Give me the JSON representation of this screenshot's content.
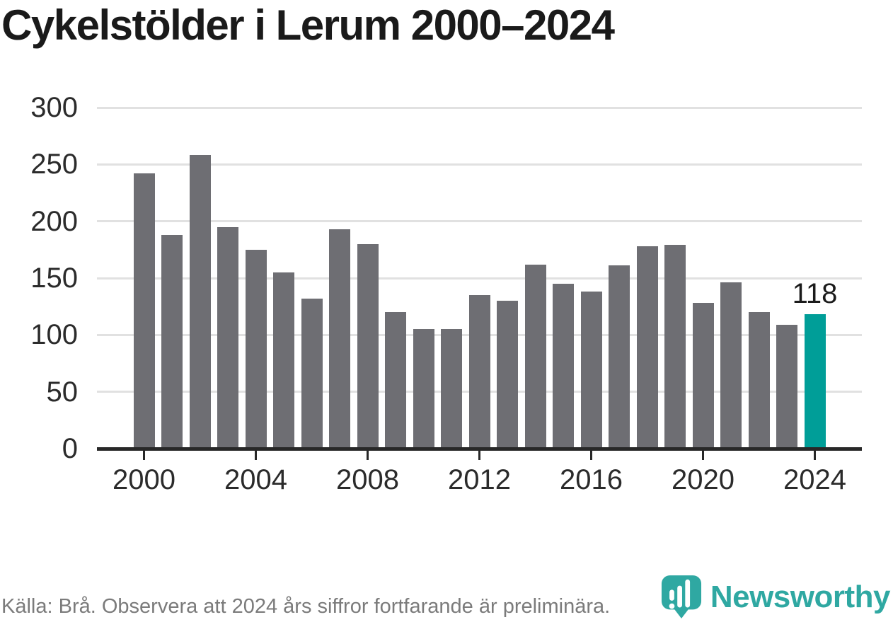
{
  "chart_data": {
    "type": "bar",
    "title": "Cykelstölder i Lerum 2000–2024",
    "xlabel": "",
    "ylabel": "",
    "x": [
      2000,
      2001,
      2002,
      2003,
      2004,
      2005,
      2006,
      2007,
      2008,
      2009,
      2010,
      2011,
      2012,
      2013,
      2014,
      2015,
      2016,
      2017,
      2018,
      2019,
      2020,
      2021,
      2022,
      2023,
      2024
    ],
    "values": [
      242,
      188,
      258,
      195,
      175,
      155,
      132,
      193,
      180,
      120,
      105,
      105,
      135,
      130,
      162,
      145,
      138,
      161,
      178,
      179,
      128,
      146,
      120,
      109,
      118
    ],
    "ylim": [
      0,
      300
    ],
    "yticks": [
      0,
      50,
      100,
      150,
      200,
      250,
      300
    ],
    "xticks": [
      2000,
      2004,
      2008,
      2012,
      2016,
      2020,
      2024
    ],
    "grid": true,
    "legend": false,
    "bar_color": "#6e6e73",
    "grid_color": "#e1e1e1",
    "axis_color": "#282828",
    "tick_label_color": "#2b2b2b",
    "highlight": {
      "year": 2024,
      "label": "118",
      "color": "#009e98"
    }
  },
  "footer": {
    "source_text": "Källa: Brå. Observera att 2024 års siffror fortfarande är preliminära."
  },
  "branding": {
    "logo_text": "Newsworthy",
    "logo_color": "#2fa8a2",
    "logo_icon": "newsworthy-pin-barchart-icon"
  }
}
